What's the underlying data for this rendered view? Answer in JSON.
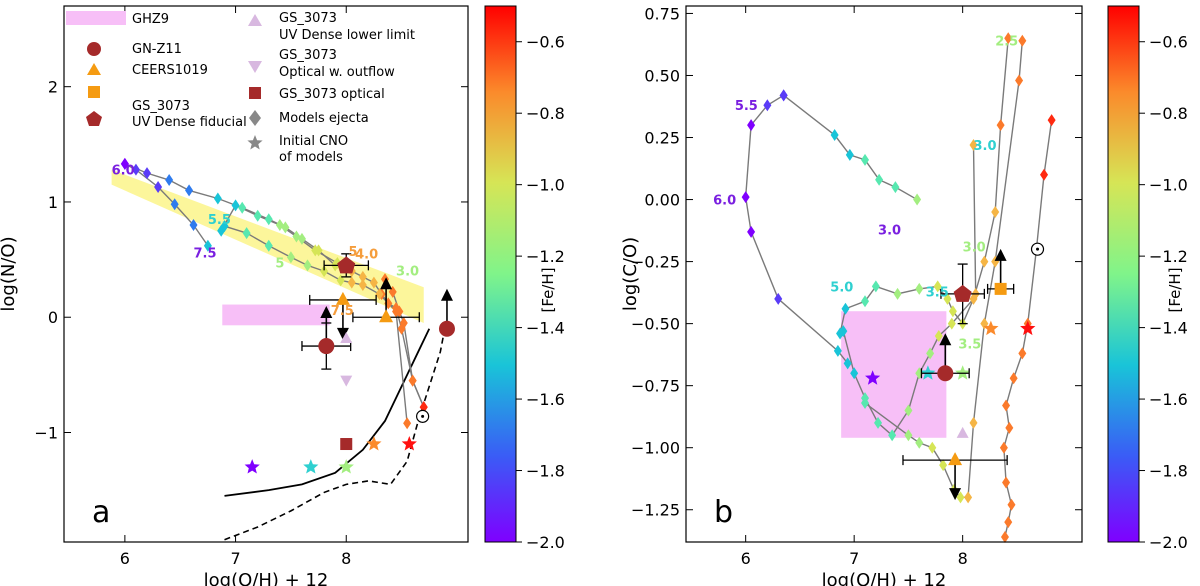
{
  "chart_data": [
    {
      "type": "scatter",
      "panel_letter": "a",
      "xlabel": "log(O/H) + 12",
      "ylabel": "log(N/O)",
      "xlim": [
        5.45,
        9.1
      ],
      "ylim": [
        -1.95,
        2.7
      ],
      "xticks": [
        6,
        7,
        8
      ],
      "yticks": [
        -1,
        0,
        1,
        2
      ],
      "colorbar": {
        "label": "[Fe/H]",
        "range": [
          -2.0,
          -0.5
        ],
        "ticks": [
          "-0.6",
          "-0.8",
          "-1.0",
          "-1.2",
          "-1.4",
          "-1.6",
          "-1.8",
          "-2.0"
        ]
      },
      "legend": [
        "GHZ9",
        "GN-Z11",
        "CEERS1019",
        "GS_3073",
        "UV Dense fiducial",
        "GS_3073",
        "UV Dense lower limit",
        "GS_3073",
        "Optical w. outflow",
        "GS_3073 optical",
        "Models ejecta",
        "Initial CNO",
        "of models"
      ],
      "annotations": [
        {
          "text": "6.0",
          "x": 5.88,
          "y": 1.24,
          "color": "#7a1fe0"
        },
        {
          "text": "7.5",
          "x": 6.62,
          "y": 0.52,
          "color": "#7a1fe0"
        },
        {
          "text": "5.5",
          "x": 6.75,
          "y": 0.81,
          "color": "#2fd0d0"
        },
        {
          "text": "5",
          "x": 7.36,
          "y": 0.43,
          "color": "#a3ee80"
        },
        {
          "text": "5",
          "x": 8.02,
          "y": 0.53,
          "color": "#f59d3c"
        },
        {
          "text": "4.0",
          "x": 8.08,
          "y": 0.51,
          "color": "#f59d3c"
        },
        {
          "text": "3.0",
          "x": 8.45,
          "y": 0.36,
          "color": "#a3ee80"
        },
        {
          "text": "7.5",
          "x": 7.86,
          "y": 0.02,
          "color": "#f59d3c"
        }
      ],
      "ghz9_box": {
        "x": [
          6.88,
          7.85
        ],
        "y": [
          -0.07,
          0.11
        ]
      },
      "yellow_band": [
        [
          5.88,
          1.28
        ],
        [
          8.7,
          0.26
        ],
        [
          8.7,
          -0.05
        ],
        [
          5.88,
          1.15
        ]
      ],
      "model_tracks": [
        [
          [
            6.0,
            1.33
          ],
          [
            6.2,
            1.25
          ],
          [
            6.4,
            1.19
          ],
          [
            6.58,
            1.1
          ],
          [
            6.84,
            1.03
          ],
          [
            7.06,
            0.95
          ],
          [
            7.3,
            0.85
          ],
          [
            7.45,
            0.78
          ],
          [
            7.6,
            0.68
          ],
          [
            7.75,
            0.58
          ],
          [
            7.9,
            0.45
          ]
        ],
        [
          [
            6.0,
            1.33
          ],
          [
            6.1,
            1.28
          ],
          [
            6.3,
            1.13
          ],
          [
            6.45,
            0.98
          ],
          [
            6.62,
            0.8
          ],
          [
            6.75,
            0.62
          ]
        ],
        [
          [
            6.87,
            0.75
          ],
          [
            7.0,
            0.97
          ],
          [
            7.2,
            0.88
          ],
          [
            7.4,
            0.8
          ],
          [
            7.55,
            0.7
          ],
          [
            7.72,
            0.58
          ],
          [
            7.92,
            0.47
          ],
          [
            8.05,
            0.4
          ],
          [
            8.15,
            0.35
          ],
          [
            8.25,
            0.3
          ],
          [
            8.32,
            0.2
          ],
          [
            8.38,
            0.12
          ],
          [
            8.45,
            0.08
          ],
          [
            8.5,
            -0.1
          ],
          [
            8.6,
            -0.55
          ],
          [
            8.7,
            -0.78
          ]
        ],
        [
          [
            6.9,
            0.79
          ],
          [
            7.1,
            0.73
          ],
          [
            7.3,
            0.62
          ],
          [
            7.5,
            0.52
          ],
          [
            7.65,
            0.45
          ],
          [
            7.8,
            0.4
          ],
          [
            7.95,
            0.32
          ],
          [
            8.05,
            0.3
          ],
          [
            8.15,
            0.28
          ],
          [
            8.3,
            0.2
          ],
          [
            8.45,
            0.05
          ],
          [
            8.55,
            -0.92
          ]
        ],
        [
          [
            8.35,
            0.33
          ],
          [
            8.42,
            0.22
          ],
          [
            8.48,
            0.05
          ],
          [
            8.52,
            -0.05
          ],
          [
            8.6,
            -0.55
          ],
          [
            8.7,
            -0.78
          ]
        ]
      ],
      "measurements": [
        {
          "name": "GN-Z11",
          "x": 7.82,
          "y": -0.25,
          "xerr": 0.22,
          "yerr": 0.2,
          "arrow": "up"
        },
        {
          "name": "GN-Z11",
          "x": 8.91,
          "y": -0.1,
          "xerr": 0.0,
          "yerr": 0.0,
          "arrow": "up"
        },
        {
          "name": "CEERS1019",
          "x": 7.97,
          "y": 0.15,
          "xerr": 0.3,
          "yerr": 0.0,
          "arrow": "down"
        },
        {
          "name": "CEERS1019",
          "x": 8.36,
          "y": 0.0,
          "xerr": 0.3,
          "yerr": 0.0,
          "arrow": "up"
        },
        {
          "name": "GS_3073 UV Dense fiducial",
          "x": 8.0,
          "y": 0.45,
          "xerr": 0.2,
          "yerr": 0.1
        },
        {
          "name": "GS_3073 optical",
          "x": 8.0,
          "y": -1.1
        },
        {
          "name": "GS_3073 Optical w. outflow",
          "x": 8.0,
          "y": -0.55
        },
        {
          "name": "GS_3073 UV Dense lower limit",
          "x": 8.0,
          "y": -0.18
        }
      ],
      "initial_cno": [
        [
          7.15,
          -1.3
        ],
        [
          7.68,
          -1.3
        ],
        [
          8.0,
          -1.3
        ],
        [
          8.25,
          -1.1
        ],
        [
          8.57,
          -1.1
        ]
      ],
      "solar": {
        "x": 8.69,
        "y": -0.86
      },
      "solid_curve": [
        [
          6.9,
          -1.55
        ],
        [
          7.3,
          -1.5
        ],
        [
          7.6,
          -1.45
        ],
        [
          7.9,
          -1.35
        ],
        [
          8.15,
          -1.15
        ],
        [
          8.35,
          -0.9
        ],
        [
          8.55,
          -0.5
        ],
        [
          8.65,
          -0.3
        ],
        [
          8.75,
          -0.1
        ]
      ],
      "dashed_curve": [
        [
          6.9,
          -1.93
        ],
        [
          7.2,
          -1.82
        ],
        [
          7.5,
          -1.68
        ],
        [
          7.8,
          -1.52
        ],
        [
          8.0,
          -1.45
        ],
        [
          8.2,
          -1.42
        ],
        [
          8.4,
          -1.45
        ],
        [
          8.55,
          -1.25
        ],
        [
          8.65,
          -0.9
        ],
        [
          8.75,
          -0.6
        ],
        [
          8.85,
          -0.3
        ],
        [
          8.88,
          -0.15
        ]
      ]
    },
    {
      "type": "scatter",
      "panel_letter": "b",
      "xlabel": "log(O/H) + 12",
      "ylabel": "log(C/O)",
      "xlim": [
        5.45,
        9.1
      ],
      "ylim": [
        -1.38,
        0.78
      ],
      "xticks": [
        6,
        7,
        8
      ],
      "yticks": [
        0.75,
        0.5,
        0.25,
        0.0,
        -0.25,
        -0.5,
        -0.75,
        -1.0,
        -1.25
      ],
      "ytick_labels": [
        "0.75",
        "0.50",
        "0.25",
        "0.00",
        "−0.25",
        "−0.50",
        "−0.75",
        "−1.00",
        "−1.25"
      ],
      "colorbar": {
        "label": "[Fe/H]",
        "range": [
          -2.0,
          -0.5
        ],
        "ticks": [
          "-0.6",
          "-0.8",
          "-1.0",
          "-1.2",
          "-1.4",
          "-1.6",
          "-1.8",
          "-2.0"
        ]
      },
      "annotations": [
        {
          "text": "2.5",
          "x": 8.3,
          "y": 0.62,
          "color": "#a3ee80"
        },
        {
          "text": "5.5",
          "x": 5.9,
          "y": 0.36,
          "color": "#7a1fe0"
        },
        {
          "text": "3.0",
          "x": 8.1,
          "y": 0.2,
          "color": "#2fd0d0"
        },
        {
          "text": "6.0",
          "x": 5.7,
          "y": -0.02,
          "color": "#7a1fe0"
        },
        {
          "text": "3.0",
          "x": 7.22,
          "y": -0.14,
          "color": "#7a1fe0"
        },
        {
          "text": "3.0",
          "x": 8.0,
          "y": -0.21,
          "color": "#a3ee80"
        },
        {
          "text": "5.0",
          "x": 6.78,
          "y": -0.37,
          "color": "#2fd0d0"
        },
        {
          "text": "3.5",
          "x": 7.66,
          "y": -0.39,
          "color": "#2fd0d0"
        },
        {
          "text": "3.5",
          "x": 7.96,
          "y": -0.6,
          "color": "#a3ee80"
        }
      ],
      "ghz9_box": {
        "x": [
          6.88,
          7.85
        ],
        "y": [
          -0.96,
          -0.45
        ]
      },
      "model_tracks": [
        [
          [
            6.35,
            0.42
          ],
          [
            6.2,
            0.38
          ],
          [
            6.05,
            0.3
          ],
          [
            6.0,
            0.01
          ],
          [
            6.05,
            -0.13
          ],
          [
            6.3,
            -0.4
          ],
          [
            6.85,
            -0.61
          ],
          [
            6.94,
            -0.66
          ]
        ],
        [
          [
            6.35,
            0.42
          ],
          [
            6.82,
            0.26
          ],
          [
            6.96,
            0.18
          ],
          [
            7.1,
            0.16
          ],
          [
            7.23,
            0.08
          ],
          [
            7.38,
            0.05
          ],
          [
            7.58,
            0.0
          ]
        ],
        [
          [
            6.87,
            -0.54
          ],
          [
            6.92,
            -0.44
          ],
          [
            7.1,
            -0.41
          ],
          [
            7.2,
            -0.35
          ],
          [
            7.4,
            -0.38
          ],
          [
            7.6,
            -0.36
          ],
          [
            7.77,
            -0.35
          ],
          [
            7.86,
            -0.4
          ],
          [
            7.91,
            -0.45
          ],
          [
            8.0,
            -0.5
          ],
          [
            8.12,
            -0.38
          ],
          [
            8.1,
            0.22
          ]
        ],
        [
          [
            6.9,
            -0.53
          ],
          [
            7.0,
            -0.7
          ],
          [
            7.1,
            -0.8
          ],
          [
            7.22,
            -0.9
          ],
          [
            7.35,
            -0.95
          ],
          [
            7.5,
            -0.85
          ],
          [
            7.6,
            -0.7
          ],
          [
            7.7,
            -0.62
          ],
          [
            7.78,
            -0.55
          ],
          [
            7.9,
            -0.5
          ],
          [
            8.1,
            -0.4
          ],
          [
            8.2,
            -0.25
          ],
          [
            8.3,
            -0.05
          ],
          [
            8.35,
            0.3
          ],
          [
            8.42,
            0.65
          ]
        ],
        [
          [
            7.1,
            -0.82
          ],
          [
            7.5,
            -0.95
          ],
          [
            7.6,
            -0.98
          ],
          [
            7.72,
            -1.0
          ],
          [
            7.82,
            -1.07
          ],
          [
            7.92,
            -1.17
          ],
          [
            7.98,
            -1.2
          ],
          [
            8.05,
            -1.2
          ],
          [
            8.1,
            -0.9
          ],
          [
            8.2,
            -0.5
          ],
          [
            8.3,
            -0.25
          ],
          [
            8.52,
            0.48
          ],
          [
            8.55,
            0.64
          ]
        ],
        [
          [
            8.39,
            -1.36
          ],
          [
            8.42,
            -1.3
          ],
          [
            8.45,
            -1.23
          ],
          [
            8.4,
            -1.14
          ],
          [
            8.38,
            -1.0
          ],
          [
            8.43,
            -0.92
          ],
          [
            8.4,
            -0.83
          ],
          [
            8.47,
            -0.72
          ],
          [
            8.55,
            -0.62
          ],
          [
            8.6,
            -0.5
          ],
          [
            8.68,
            -0.2
          ],
          [
            8.75,
            0.1
          ],
          [
            8.82,
            0.32
          ]
        ]
      ],
      "measurements": [
        {
          "name": "GN-Z11",
          "x": 7.84,
          "y": -0.7,
          "xerr": 0.22,
          "yerr": 0.0,
          "arrow": "up"
        },
        {
          "name": "CEERS1019",
          "x": 7.93,
          "y": -1.05,
          "xerr": 0.48,
          "yerr": 0.0,
          "arrow": "down"
        },
        {
          "name": "GS_3073",
          "x": 8.35,
          "y": -0.36,
          "xerr": 0.12,
          "yerr": 0.0,
          "arrow": "up"
        },
        {
          "name": "GS_3073 UV Dense fiducial",
          "x": 8.0,
          "y": -0.38,
          "xerr": 0.2,
          "yerr": 0.12
        },
        {
          "name": "GS_3073 UV Dense lower limit",
          "x": 8.0,
          "y": -0.94
        }
      ],
      "initial_cno": [
        [
          7.17,
          -0.72
        ],
        [
          7.68,
          -0.7
        ],
        [
          8.0,
          -0.7
        ],
        [
          8.26,
          -0.52
        ],
        [
          8.6,
          -0.52
        ]
      ],
      "solar": {
        "x": 8.69,
        "y": -0.2
      }
    }
  ]
}
